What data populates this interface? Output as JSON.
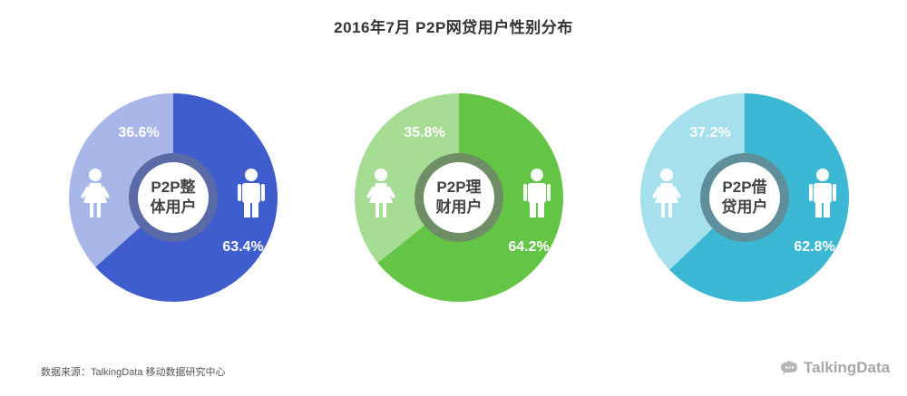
{
  "title": "2016年7月  P2P网贷用户性别分布",
  "source": "数据来源：TalkingData 移动数据研究中心",
  "logo": {
    "text": "TalkingData",
    "icon": "talkingdata-logo-icon"
  },
  "icons": {
    "female": "female-person-icon",
    "male": "male-person-icon"
  },
  "chart_data": [
    {
      "type": "pie",
      "center_label": [
        "P2P整",
        "体用户"
      ],
      "slices": [
        {
          "category": "male",
          "value": 63.4,
          "label": "63.4%",
          "color": "#3f5dcc"
        },
        {
          "category": "female",
          "value": 36.6,
          "label": "36.6%",
          "color": "#a9b7e8"
        }
      ],
      "ring_color": "#5a6aa6"
    },
    {
      "type": "pie",
      "center_label": [
        "P2P理",
        "财用户"
      ],
      "slices": [
        {
          "category": "male",
          "value": 64.2,
          "label": "64.2%",
          "color": "#64c446"
        },
        {
          "category": "female",
          "value": 35.8,
          "label": "35.8%",
          "color": "#a7dc95"
        }
      ],
      "ring_color": "#6f8e66"
    },
    {
      "type": "pie",
      "center_label": [
        "P2P借",
        "贷用户"
      ],
      "slices": [
        {
          "category": "male",
          "value": 62.8,
          "label": "62.8%",
          "color": "#3db8d4"
        },
        {
          "category": "female",
          "value": 37.2,
          "label": "37.2%",
          "color": "#a6e0ec"
        }
      ],
      "ring_color": "#5f8f9b"
    }
  ]
}
